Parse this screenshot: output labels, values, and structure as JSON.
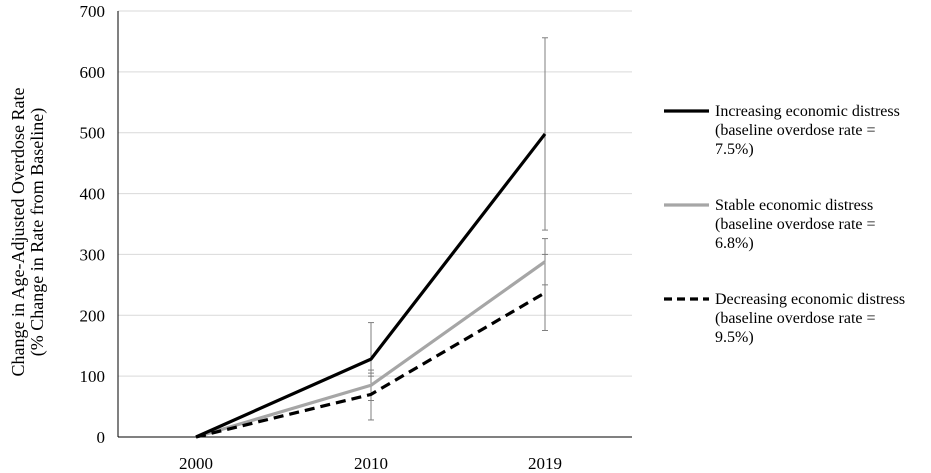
{
  "chart_data": {
    "type": "line",
    "categories": [
      "2000",
      "2010",
      "2019"
    ],
    "ylim": [
      0,
      700
    ],
    "yticks": [
      0,
      100,
      200,
      300,
      400,
      500,
      600,
      700
    ],
    "ylabel_lines": [
      "Change in Age-Adjusted Overdose Rate",
      "(% Change in Rate from Baseline)"
    ],
    "grid": true,
    "legend_position": "right",
    "series": [
      {
        "name": "Increasing economic distress",
        "legend_lines": [
          "Increasing economic distress",
          "(baseline overdose rate =",
          "7.5%)"
        ],
        "values": [
          0,
          128,
          498
        ],
        "err_low": [
          0,
          100,
          340
        ],
        "err_high": [
          0,
          188,
          656
        ],
        "color": "#000000",
        "dash": "none"
      },
      {
        "name": "Stable economic distress",
        "legend_lines": [
          "Stable economic distress",
          "(baseline overdose rate =",
          "6.8%)"
        ],
        "values": [
          0,
          85,
          288
        ],
        "err_low": [
          0,
          60,
          250
        ],
        "err_high": [
          0,
          110,
          326
        ],
        "color": "#a6a6a6",
        "dash": "none"
      },
      {
        "name": "Decreasing economic distress",
        "legend_lines": [
          "Decreasing economic distress",
          "(baseline overdose rate =",
          "9.5%)"
        ],
        "values": [
          0,
          70,
          237
        ],
        "err_low": [
          0,
          28,
          175
        ],
        "err_high": [
          0,
          105,
          300
        ],
        "color": "#000000",
        "dash": "dashed"
      }
    ]
  }
}
